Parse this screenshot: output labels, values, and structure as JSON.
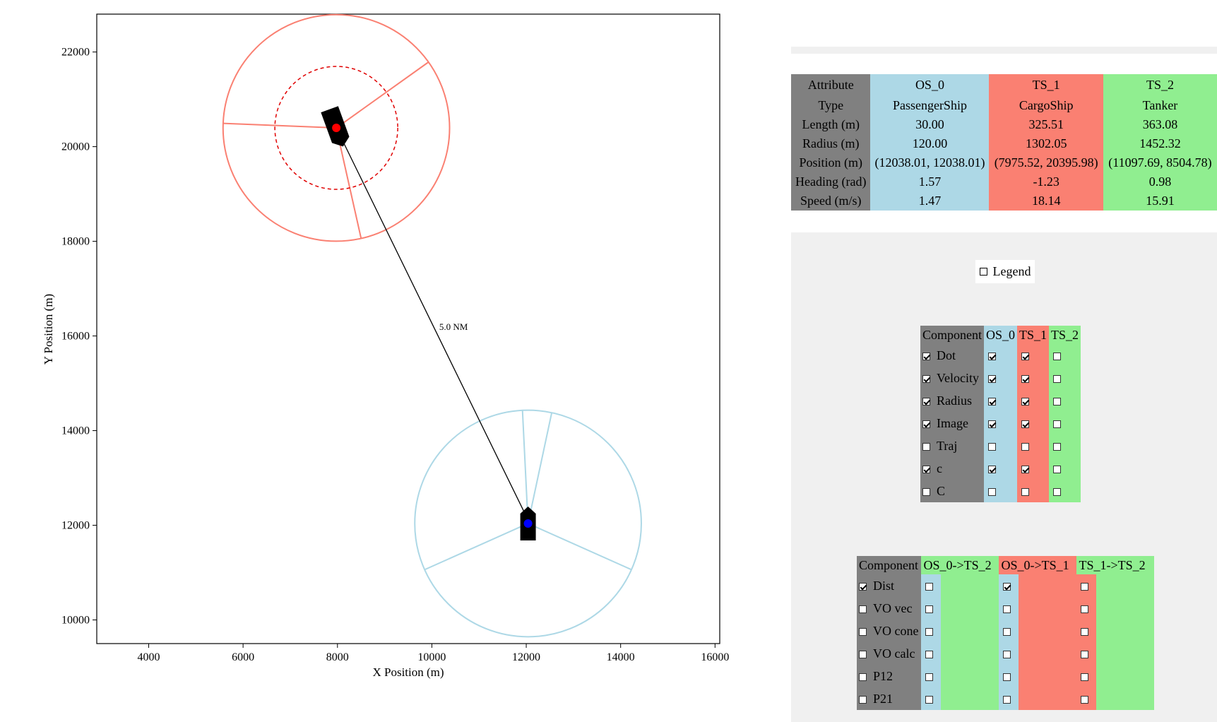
{
  "chart_data": {
    "type": "scatter",
    "xlabel": "X Position (m)",
    "ylabel": "Y Position (m)",
    "xlim": [
      2900,
      16100
    ],
    "ylim": [
      9500,
      22800
    ],
    "xticks": [
      4000,
      6000,
      8000,
      10000,
      12000,
      14000,
      16000
    ],
    "yticks": [
      10000,
      12000,
      14000,
      16000,
      18000,
      20000,
      22000
    ],
    "colors": {
      "os": "#add8e6",
      "ts1": "#fa8072"
    },
    "ships": [
      {
        "name": "OS_0",
        "x": 12038.01,
        "y": 12038.01,
        "heading": 1.57,
        "radius": 120.0,
        "dot_color": "#0000ff",
        "zone_radius": 2400
      },
      {
        "name": "TS_1",
        "x": 7975.52,
        "y": 20395.98,
        "heading": -1.23,
        "radius": 1302.05,
        "dot_color": "#ff0000",
        "zone_radius": 2400
      }
    ],
    "distance_line": {
      "from": "OS_0",
      "to": "TS_1",
      "label": "5.0 NM"
    }
  },
  "attr_table": {
    "header": [
      "Attribute",
      "OS_0",
      "TS_1",
      "TS_2"
    ],
    "rows": [
      [
        "Type",
        "PassengerShip",
        "CargoShip",
        "Tanker"
      ],
      [
        "Length (m)",
        "30.00",
        "325.51",
        "363.08"
      ],
      [
        "Radius (m)",
        "120.00",
        "1302.05",
        "1452.32"
      ],
      [
        "Position (m)",
        "(12038.01, 12038.01)",
        "(7975.52, 20395.98)",
        "(11097.69, 8504.78)"
      ],
      [
        "Heading (rad)",
        "1.57",
        "-1.23",
        "0.98"
      ],
      [
        "Speed (m/s)",
        "1.47",
        "18.14",
        "15.91"
      ]
    ]
  },
  "legend_toggle": {
    "label": "Legend",
    "checked": false
  },
  "ship_components": {
    "header": [
      "Component",
      "OS_0",
      "TS_1",
      "TS_2"
    ],
    "rows": [
      {
        "label": "Dot",
        "all": true,
        "os": true,
        "ts1": true,
        "ts2": false
      },
      {
        "label": "Velocity",
        "all": true,
        "os": true,
        "ts1": true,
        "ts2": false
      },
      {
        "label": "Radius",
        "all": true,
        "os": true,
        "ts1": true,
        "ts2": false
      },
      {
        "label": "Image",
        "all": true,
        "os": true,
        "ts1": true,
        "ts2": false
      },
      {
        "label": "Traj",
        "all": false,
        "os": false,
        "ts1": false,
        "ts2": false
      },
      {
        "label": "c",
        "all": true,
        "os": true,
        "ts1": true,
        "ts2": false
      },
      {
        "label": "C",
        "all": false,
        "os": false,
        "ts1": false,
        "ts2": false
      }
    ]
  },
  "pair_components": {
    "header": [
      "Component",
      "OS_0->TS_2",
      "OS_0->TS_1",
      "TS_1->TS_2"
    ],
    "rows": [
      {
        "label": "Dist",
        "all": true,
        "p1": false,
        "p2": true,
        "p3": false
      },
      {
        "label": "VO vec",
        "all": false,
        "p1": false,
        "p2": false,
        "p3": false
      },
      {
        "label": "VO cone",
        "all": false,
        "p1": false,
        "p2": false,
        "p3": false
      },
      {
        "label": "VO calc",
        "all": false,
        "p1": false,
        "p2": false,
        "p3": false
      },
      {
        "label": "P12",
        "all": false,
        "p1": false,
        "p2": false,
        "p3": false
      },
      {
        "label": "P21",
        "all": false,
        "p1": false,
        "p2": false,
        "p3": false
      }
    ]
  }
}
